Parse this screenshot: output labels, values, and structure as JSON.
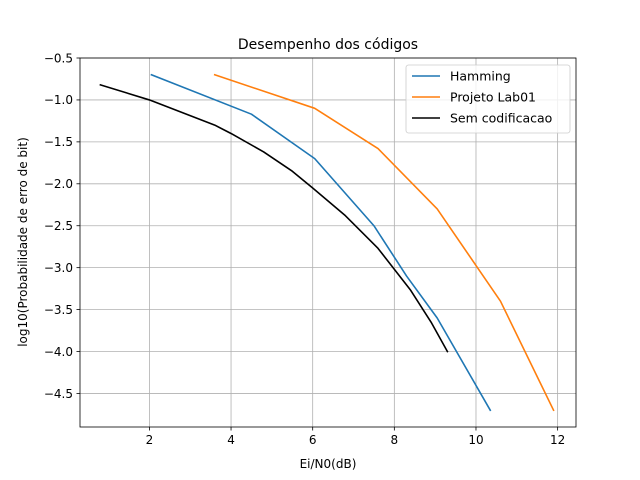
{
  "chart_data": {
    "type": "line",
    "title": "Desempenho dos códigos",
    "xlabel": "Ei/N0(dB)",
    "ylabel": "log10(Probabilidade de erro de bit)",
    "xlim": [
      0.3,
      12.45
    ],
    "ylim": [
      -4.9,
      -0.5
    ],
    "xticks": [
      2,
      4,
      6,
      8,
      10,
      12
    ],
    "xtick_labels": [
      "2",
      "4",
      "6",
      "8",
      "10",
      "12"
    ],
    "yticks": [
      -4.5,
      -4.0,
      -3.5,
      -3.0,
      -2.5,
      -2.0,
      -1.5,
      -1.0,
      -0.5
    ],
    "ytick_labels": [
      "−4.5",
      "−4.0",
      "−3.5",
      "−3.0",
      "−2.5",
      "−2.0",
      "−1.5",
      "−1.0",
      "−0.5"
    ],
    "grid": true,
    "legend_position": "top-right",
    "series": [
      {
        "name": "Hamming",
        "color": "#1f77b4",
        "x": [
          2.05,
          4.5,
          6.05,
          7.5,
          8.3,
          9.05,
          10.35
        ],
        "y": [
          -0.7,
          -1.17,
          -1.7,
          -2.5,
          -3.1,
          -3.6,
          -4.7
        ]
      },
      {
        "name": "Projeto Lab01",
        "color": "#ff7f0e",
        "x": [
          3.6,
          6.05,
          7.6,
          9.05,
          10.6,
          11.9
        ],
        "y": [
          -0.7,
          -1.1,
          -1.58,
          -2.3,
          -3.4,
          -4.7
        ]
      },
      {
        "name": "Sem codificacao",
        "color": "#000000",
        "x": [
          0.8,
          2.0,
          3.6,
          4.0,
          4.8,
          5.5,
          6.0,
          6.8,
          7.6,
          8.4,
          8.9,
          9.3
        ],
        "y": [
          -0.82,
          -1.0,
          -1.3,
          -1.4,
          -1.62,
          -1.85,
          -2.05,
          -2.38,
          -2.77,
          -3.27,
          -3.65,
          -4.0
        ]
      }
    ]
  }
}
